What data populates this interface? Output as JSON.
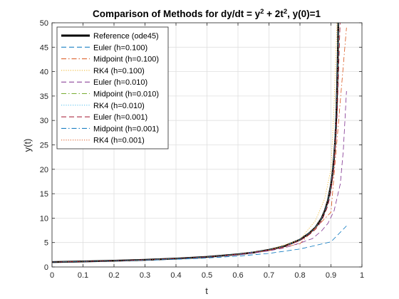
{
  "chart_data": {
    "type": "line",
    "title_parts": [
      "Comparison of Methods for dy/dt = y",
      "2",
      " + 2t",
      "2",
      ", y(0)=1"
    ],
    "xlabel": "t",
    "ylabel": "y(t)",
    "xlim": [
      0,
      1
    ],
    "ylim": [
      0,
      50
    ],
    "xticks": [
      0,
      0.1,
      0.2,
      0.3,
      0.4,
      0.5,
      0.6,
      0.7,
      0.8,
      0.9,
      1
    ],
    "xtick_labels": [
      "0",
      "0.1",
      "0.2",
      "0.3",
      "0.4",
      "0.5",
      "0.6",
      "0.7",
      "0.8",
      "0.9",
      "1"
    ],
    "yticks": [
      0,
      5,
      10,
      15,
      20,
      25,
      30,
      35,
      40,
      45,
      50
    ],
    "ytick_labels": [
      "0",
      "5",
      "10",
      "15",
      "20",
      "25",
      "30",
      "35",
      "40",
      "45",
      "50"
    ],
    "grid": true,
    "legend_position": "top-left",
    "series": [
      {
        "name": "Reference (ode45)",
        "color": "#000000",
        "width": 2.5,
        "dash": "",
        "x": [
          0,
          0.1,
          0.2,
          0.3,
          0.4,
          0.5,
          0.6,
          0.65,
          0.7,
          0.75,
          0.8,
          0.83,
          0.85,
          0.87,
          0.88,
          0.89,
          0.9,
          0.905,
          0.91,
          0.913,
          0.916,
          0.918,
          0.92,
          0.922,
          0.924
        ],
        "y": [
          1,
          1.12,
          1.27,
          1.46,
          1.71,
          2.05,
          2.6,
          2.98,
          3.5,
          4.25,
          5.6,
          6.9,
          8.1,
          10.0,
          11.5,
          13.6,
          16.8,
          19.2,
          22.5,
          25.3,
          29.0,
          32.3,
          37.0,
          43.0,
          51.0
        ]
      },
      {
        "name": "Euler (h=0.100)",
        "color": "#0072BD",
        "width": 0.8,
        "dash": "7,4",
        "x": [
          0,
          0.1,
          0.2,
          0.3,
          0.4,
          0.5,
          0.6,
          0.7,
          0.8,
          0.9,
          0.95
        ],
        "y": [
          1,
          1.1,
          1.222,
          1.374,
          1.571,
          1.837,
          2.22,
          2.79,
          3.67,
          5.14,
          8.4
        ]
      },
      {
        "name": "Midpoint (h=0.100)",
        "color": "#D95319",
        "width": 0.8,
        "dash": "7,3,1.5,3",
        "x": [
          0,
          0.1,
          0.2,
          0.3,
          0.4,
          0.5,
          0.6,
          0.7,
          0.8,
          0.9,
          0.95
        ],
        "y": [
          1,
          1.111,
          1.255,
          1.44,
          1.69,
          2.03,
          2.54,
          3.35,
          4.75,
          11.2,
          49.0
        ]
      },
      {
        "name": "RK4 (h=0.100)",
        "color": "#EDB120",
        "width": 0.8,
        "dash": "1.2,2",
        "x": [
          0,
          0.1,
          0.2,
          0.3,
          0.4,
          0.5,
          0.6,
          0.7,
          0.8,
          0.85,
          0.88,
          0.9,
          0.91,
          0.92
        ],
        "y": [
          1,
          1.12,
          1.27,
          1.46,
          1.71,
          2.05,
          2.6,
          3.5,
          5.6,
          9.5,
          14.0,
          20.0,
          33.0,
          51.0
        ]
      },
      {
        "name": "Euler (h=0.010)",
        "color": "#7E2F8E",
        "width": 0.8,
        "dash": "7,4",
        "x": [
          0,
          0.1,
          0.2,
          0.3,
          0.4,
          0.5,
          0.6,
          0.7,
          0.75,
          0.8,
          0.84,
          0.87,
          0.89,
          0.91,
          0.93,
          0.94,
          0.95
        ],
        "y": [
          1,
          1.11,
          1.26,
          1.45,
          1.7,
          2.02,
          2.5,
          3.3,
          3.9,
          4.9,
          5.8,
          7.4,
          8.9,
          11.5,
          17.0,
          24.0,
          36.0
        ]
      },
      {
        "name": "Midpoint (h=0.010)",
        "color": "#77AC30",
        "width": 0.8,
        "dash": "7,3,1.5,3",
        "x": [
          0,
          0.1,
          0.2,
          0.3,
          0.4,
          0.5,
          0.6,
          0.7,
          0.75,
          0.8,
          0.83,
          0.85,
          0.87,
          0.88,
          0.89,
          0.9,
          0.91,
          0.92,
          0.924
        ],
        "y": [
          1,
          1.12,
          1.27,
          1.46,
          1.71,
          2.05,
          2.6,
          3.5,
          4.25,
          5.6,
          6.9,
          8.1,
          10.0,
          11.5,
          13.6,
          16.8,
          22.5,
          37.0,
          51.0
        ]
      },
      {
        "name": "RK4 (h=0.010)",
        "color": "#4DBEEE",
        "width": 0.8,
        "dash": "1.2,2",
        "x": [
          0,
          0.1,
          0.2,
          0.3,
          0.4,
          0.5,
          0.6,
          0.7,
          0.75,
          0.8,
          0.83,
          0.85,
          0.87,
          0.88,
          0.89,
          0.9,
          0.91,
          0.92,
          0.924
        ],
        "y": [
          1,
          1.12,
          1.27,
          1.46,
          1.71,
          2.05,
          2.6,
          3.5,
          4.25,
          5.6,
          6.9,
          8.1,
          10.0,
          11.5,
          13.6,
          16.8,
          22.5,
          37.0,
          51.0
        ]
      },
      {
        "name": "Euler (h=0.001)",
        "color": "#A2142F",
        "width": 0.8,
        "dash": "7,4",
        "x": [
          0,
          0.1,
          0.2,
          0.3,
          0.4,
          0.5,
          0.6,
          0.7,
          0.75,
          0.8,
          0.83,
          0.85,
          0.87,
          0.89,
          0.9,
          0.91,
          0.92,
          0.93
        ],
        "y": [
          1,
          1.12,
          1.27,
          1.46,
          1.7,
          2.04,
          2.58,
          3.45,
          4.15,
          5.4,
          6.6,
          7.7,
          9.4,
          12.5,
          15.5,
          20.5,
          31.0,
          51.0
        ]
      },
      {
        "name": "Midpoint (h=0.001)",
        "color": "#0072BD",
        "width": 0.8,
        "dash": "7,3,1.5,3",
        "x": [
          0,
          0.1,
          0.2,
          0.3,
          0.4,
          0.5,
          0.6,
          0.7,
          0.75,
          0.8,
          0.83,
          0.85,
          0.87,
          0.88,
          0.89,
          0.9,
          0.91,
          0.92,
          0.924
        ],
        "y": [
          1,
          1.12,
          1.27,
          1.46,
          1.71,
          2.05,
          2.6,
          3.5,
          4.25,
          5.6,
          6.9,
          8.1,
          10.0,
          11.5,
          13.6,
          16.8,
          22.5,
          37.0,
          51.0
        ]
      },
      {
        "name": "RK4 (h=0.001)",
        "color": "#D95319",
        "width": 0.8,
        "dash": "1.2,2",
        "x": [
          0,
          0.1,
          0.2,
          0.3,
          0.4,
          0.5,
          0.6,
          0.7,
          0.75,
          0.8,
          0.83,
          0.85,
          0.87,
          0.88,
          0.89,
          0.9,
          0.91,
          0.92,
          0.924
        ],
        "y": [
          1,
          1.12,
          1.27,
          1.46,
          1.71,
          2.05,
          2.6,
          3.5,
          4.25,
          5.6,
          6.9,
          8.1,
          10.0,
          11.5,
          13.6,
          16.8,
          22.5,
          37.0,
          51.0
        ]
      }
    ]
  }
}
